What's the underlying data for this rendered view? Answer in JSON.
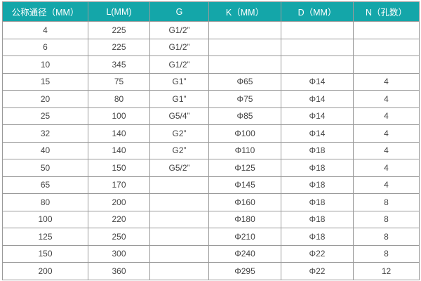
{
  "header_color": "#14a6a9",
  "columns": [
    "公称通径（MM）",
    "L(MM)",
    "G",
    "K（MM）",
    "D（MM）",
    "N（孔数）"
  ],
  "rows": [
    [
      "4",
      "225",
      "G1/2”",
      "",
      "",
      ""
    ],
    [
      "6",
      "225",
      "G1/2”",
      "",
      "",
      ""
    ],
    [
      "10",
      "345",
      "G1/2”",
      "",
      "",
      ""
    ],
    [
      "15",
      "75",
      "G1”",
      "Φ65",
      "Φ14",
      "4"
    ],
    [
      "20",
      "80",
      "G1”",
      "Φ75",
      "Φ14",
      "4"
    ],
    [
      "25",
      "100",
      "G5/4”",
      "Φ85",
      "Φ14",
      "4"
    ],
    [
      "32",
      "140",
      "G2”",
      "Φ100",
      "Φ14",
      "4"
    ],
    [
      "40",
      "140",
      "G2”",
      "Φ110",
      "Φ18",
      "4"
    ],
    [
      "50",
      "150",
      "G5/2”",
      "Φ125",
      "Φ18",
      "4"
    ],
    [
      "65",
      "170",
      "",
      "Φ145",
      "Φ18",
      "4"
    ],
    [
      "80",
      "200",
      "",
      "Φ160",
      "Φ18",
      "8"
    ],
    [
      "100",
      "220",
      "",
      "Φ180",
      "Φ18",
      "8"
    ],
    [
      "125",
      "250",
      "",
      "Φ210",
      "Φ18",
      "8"
    ],
    [
      "150",
      "300",
      "",
      "Φ240",
      "Φ22",
      "8"
    ],
    [
      "200",
      "360",
      "",
      "Φ295",
      "Φ22",
      "12"
    ]
  ]
}
